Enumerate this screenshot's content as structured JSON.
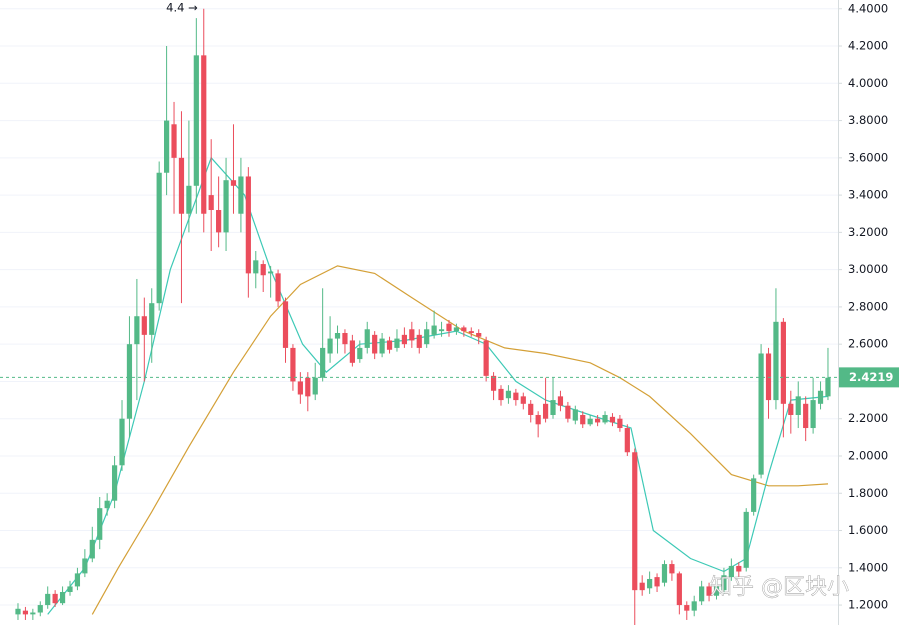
{
  "chart_data": {
    "type": "candlestick",
    "annotation": "4.4 →",
    "watermark": "知乎 @区块小",
    "up_color": "#53b987",
    "down_color": "#eb4d5c",
    "price_line": 2.4219,
    "price_line_color": "#53b987",
    "xlim": [
      -2.42,
      110.35
    ],
    "ylim": [
      1.093,
      4.447
    ],
    "yticks": [
      {
        "value": 1.2,
        "label": "1.2000"
      },
      {
        "value": 1.4,
        "label": "1.4000"
      },
      {
        "value": 1.6,
        "label": "1.6000"
      },
      {
        "value": 1.8,
        "label": "1.8000"
      },
      {
        "value": 2.0,
        "label": "2.0000"
      },
      {
        "value": 2.2,
        "label": "2.2000"
      },
      {
        "value": 2.4,
        "label": "2.4000"
      },
      {
        "value": 2.6,
        "label": "2.6000"
      },
      {
        "value": 2.8,
        "label": "2.8000"
      },
      {
        "value": 3.0,
        "label": "3.0000"
      },
      {
        "value": 3.2,
        "label": "3.2000"
      },
      {
        "value": 3.4,
        "label": "3.4000"
      },
      {
        "value": 3.6,
        "label": "3.6000"
      },
      {
        "value": 3.8,
        "label": "3.8000"
      },
      {
        "value": 4.0,
        "label": "4.0000"
      },
      {
        "value": 4.2,
        "label": "4.2000"
      },
      {
        "value": 4.4,
        "label": "4.4000"
      }
    ],
    "grid": true,
    "open": [
      1.15,
      1.17,
      1.15,
      1.16,
      1.2,
      1.26,
      1.21,
      1.27,
      1.3,
      1.37,
      1.45,
      1.55,
      1.72,
      1.76,
      1.95,
      2.2,
      2.6,
      2.75,
      2.65,
      2.82,
      3.52,
      3.78,
      3.6,
      3.3,
      3.45,
      4.15,
      3.4,
      3.32,
      3.2,
      3.48,
      3.3,
      3.5,
      2.98,
      3.03,
      2.98,
      2.98,
      2.83,
      2.58,
      2.4,
      2.42,
      2.33,
      2.42,
      2.55,
      2.63,
      2.66,
      2.62,
      2.52,
      2.58,
      2.65,
      2.55,
      2.62,
      2.58,
      2.65,
      2.68,
      2.65,
      2.6,
      2.65,
      2.67,
      2.71,
      2.67,
      2.69,
      2.67,
      2.66,
      2.62,
      2.43,
      2.36,
      2.31,
      2.34,
      2.32,
      2.28,
      2.22,
      2.28,
      2.22,
      2.32,
      2.27,
      2.19,
      2.22,
      2.17,
      2.2,
      2.18,
      2.21,
      2.2,
      2.15,
      2.02,
      1.32,
      1.29,
      1.35,
      1.32,
      1.42,
      1.37,
      1.2,
      1.17,
      1.22,
      1.3,
      1.25,
      1.28,
      1.35,
      1.41,
      1.4,
      1.7,
      1.9,
      2.55,
      2.3,
      2.72,
      2.28,
      2.22,
      2.28,
      2.15,
      2.28,
      2.32
    ],
    "high": [
      1.21,
      1.19,
      1.18,
      1.22,
      1.3,
      1.28,
      1.3,
      1.33,
      1.4,
      1.5,
      1.62,
      1.78,
      1.8,
      2.0,
      2.3,
      2.75,
      2.95,
      2.85,
      2.9,
      3.58,
      4.2,
      3.9,
      3.85,
      3.8,
      4.35,
      4.4,
      3.7,
      3.5,
      3.6,
      3.78,
      3.6,
      3.55,
      3.1,
      3.05,
      3.02,
      3.0,
      2.85,
      2.6,
      2.45,
      2.45,
      2.5,
      2.9,
      2.75,
      2.7,
      2.68,
      2.65,
      2.62,
      2.72,
      2.67,
      2.66,
      2.64,
      2.68,
      2.69,
      2.72,
      2.68,
      2.72,
      2.78,
      2.72,
      2.73,
      2.71,
      2.7,
      2.69,
      2.68,
      2.64,
      2.45,
      2.38,
      2.38,
      2.36,
      2.34,
      2.3,
      2.24,
      2.42,
      2.42,
      2.35,
      2.29,
      2.27,
      2.24,
      2.22,
      2.22,
      2.24,
      2.23,
      2.22,
      2.17,
      2.04,
      1.36,
      1.38,
      1.37,
      1.44,
      1.44,
      1.38,
      1.22,
      1.25,
      1.33,
      1.32,
      1.33,
      1.4,
      1.45,
      1.43,
      1.72,
      1.9,
      2.6,
      2.58,
      2.9,
      2.74,
      2.35,
      2.4,
      2.32,
      2.42,
      2.4,
      2.58
    ],
    "low": [
      1.12,
      1.12,
      1.12,
      1.14,
      1.18,
      1.19,
      1.2,
      1.25,
      1.28,
      1.35,
      1.43,
      1.5,
      1.68,
      1.72,
      1.92,
      2.1,
      2.3,
      2.4,
      2.5,
      2.78,
      3.4,
      3.3,
      2.82,
      3.2,
      3.3,
      3.2,
      3.1,
      3.12,
      3.1,
      3.3,
      3.2,
      2.85,
      2.9,
      2.88,
      2.85,
      2.8,
      2.5,
      2.35,
      2.28,
      2.24,
      2.3,
      2.4,
      2.5,
      2.55,
      2.55,
      2.48,
      2.5,
      2.55,
      2.52,
      2.53,
      2.55,
      2.56,
      2.58,
      2.58,
      2.55,
      2.58,
      2.63,
      2.64,
      2.64,
      2.65,
      2.64,
      2.64,
      2.6,
      2.4,
      2.3,
      2.27,
      2.28,
      2.27,
      2.25,
      2.18,
      2.1,
      2.18,
      2.2,
      2.24,
      2.18,
      2.17,
      2.15,
      2.16,
      2.16,
      2.17,
      2.16,
      2.13,
      2.0,
      1.05,
      1.25,
      1.26,
      1.27,
      1.3,
      1.33,
      1.15,
      1.12,
      1.14,
      1.2,
      1.22,
      1.23,
      1.26,
      1.33,
      1.35,
      1.38,
      1.68,
      1.88,
      2.2,
      2.25,
      2.1,
      2.12,
      2.15,
      2.08,
      2.12,
      2.25,
      2.3
    ],
    "close": [
      1.18,
      1.15,
      1.16,
      1.2,
      1.26,
      1.21,
      1.27,
      1.3,
      1.37,
      1.45,
      1.55,
      1.72,
      1.76,
      1.95,
      2.2,
      2.6,
      2.75,
      2.65,
      2.82,
      3.52,
      3.8,
      3.6,
      3.3,
      3.45,
      4.15,
      3.3,
      3.32,
      3.2,
      3.48,
      3.45,
      3.5,
      2.98,
      3.05,
      2.97,
      2.99,
      2.83,
      2.58,
      2.4,
      2.33,
      2.32,
      2.42,
      2.58,
      2.63,
      2.66,
      2.6,
      2.5,
      2.58,
      2.68,
      2.55,
      2.63,
      2.57,
      2.63,
      2.6,
      2.62,
      2.58,
      2.68,
      2.7,
      2.68,
      2.67,
      2.69,
      2.67,
      2.66,
      2.64,
      2.43,
      2.35,
      2.3,
      2.35,
      2.3,
      2.28,
      2.22,
      2.17,
      2.2,
      2.3,
      2.27,
      2.2,
      2.25,
      2.17,
      2.2,
      2.18,
      2.22,
      2.18,
      2.15,
      2.02,
      1.28,
      1.28,
      1.34,
      1.3,
      1.42,
      1.37,
      1.2,
      1.17,
      1.22,
      1.3,
      1.25,
      1.3,
      1.36,
      1.41,
      1.38,
      1.7,
      1.88,
      2.55,
      2.3,
      2.72,
      2.28,
      2.22,
      2.32,
      2.15,
      2.3,
      2.35,
      2.42
    ],
    "series": [
      {
        "color": "#d4a037",
        "x": [
          10,
          13.5,
          18,
          23,
          29,
          34,
          38,
          43,
          48,
          53,
          60,
          65.5,
          71,
          77,
          81,
          85,
          90.5,
          96,
          101,
          105,
          109
        ],
        "values": [
          1.15,
          1.4,
          1.7,
          2.05,
          2.45,
          2.75,
          2.92,
          3.02,
          2.98,
          2.85,
          2.67,
          2.58,
          2.55,
          2.5,
          2.42,
          2.32,
          2.12,
          1.9,
          1.84,
          1.84,
          1.85
        ]
      },
      {
        "color": "#3dc9b6",
        "x": [
          4,
          9,
          13,
          17,
          20.5,
          26,
          30.5,
          34,
          38.3,
          41.5,
          46,
          52,
          59,
          63,
          67,
          71,
          77,
          82.5,
          85.5,
          90.5,
          95,
          98,
          101,
          104,
          109
        ],
        "values": [
          1.15,
          1.4,
          1.8,
          2.4,
          3.0,
          3.6,
          3.4,
          3.0,
          2.6,
          2.45,
          2.6,
          2.62,
          2.67,
          2.6,
          2.4,
          2.3,
          2.22,
          2.15,
          1.6,
          1.45,
          1.38,
          1.45,
          1.9,
          2.3,
          2.32
        ]
      }
    ]
  }
}
